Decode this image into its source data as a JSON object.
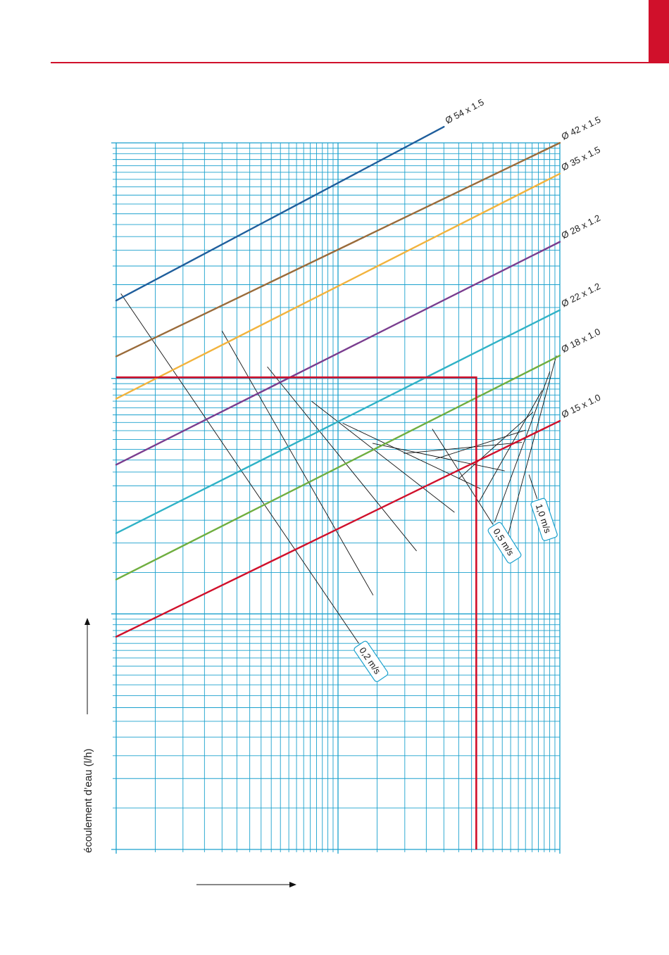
{
  "page": {
    "accent_color": "#d0102b"
  },
  "chart_data": {
    "type": "line",
    "x_scale": "log",
    "y_scale": "log",
    "grid": true,
    "grid_color": "#1ba1cd",
    "ylabel": "écoulement d’eau (l/h)",
    "xlabel": "",
    "xlim": [
      1,
      100
    ],
    "ylim": [
      10,
      10000
    ],
    "series": [
      {
        "name": "Ø 54 x 1.5",
        "color": "#1f5e9c",
        "x": [
          1,
          30
        ],
        "y": [
          2140,
          11700
        ]
      },
      {
        "name": "Ø 42 x 1.5",
        "color": "#9a6b3a",
        "x": [
          1,
          100
        ],
        "y": [
          1240,
          10000
        ]
      },
      {
        "name": "Ø 35 x 1.5",
        "color": "#f2b33d",
        "x": [
          1,
          100
        ],
        "y": [
          820,
          7400
        ]
      },
      {
        "name": "Ø 28 x 1.2",
        "color": "#7a3d8f",
        "x": [
          1,
          100
        ],
        "y": [
          430,
          3800
        ]
      },
      {
        "name": "Ø 22 x 1.2",
        "color": "#2fb2c6",
        "x": [
          1,
          100
        ],
        "y": [
          220,
          1950
        ]
      },
      {
        "name": "Ø 18 x 1.0",
        "color": "#6fae3f",
        "x": [
          1,
          100
        ],
        "y": [
          140,
          1250
        ]
      },
      {
        "name": "Ø 15 x 1.0",
        "color": "#d0102b",
        "x": [
          1,
          100
        ],
        "y": [
          80,
          660
        ]
      }
    ],
    "velocity_lines": [
      {
        "label": "0,2 m/s",
        "x": [
          1.05,
          12.4
        ],
        "y": [
          2290,
          75
        ]
      },
      {
        "label": "0,5 m/s",
        "x": [
          26.6,
          49.9
        ],
        "y": [
          610,
          240
        ]
      },
      {
        "label": "1,0 m/s",
        "x": [
          72.6,
          79
        ],
        "y": [
          390,
          308
        ]
      }
    ],
    "velocity_lines_unlabeled": [
      {
        "x": [
          3,
          14.4
        ],
        "y": [
          1590,
          120
        ]
      },
      {
        "x": [
          4.8,
          22.6
        ],
        "y": [
          1120,
          185
        ]
      },
      {
        "x": [
          7.6,
          33.5
        ],
        "y": [
          800,
          270
        ]
      },
      {
        "x": [
          10.5,
          43.9
        ],
        "y": [
          645,
          340
        ]
      },
      {
        "x": [
          14.3,
          56.4
        ],
        "y": [
          530,
          405
        ]
      },
      {
        "x": [
          19.8,
          67.5
        ],
        "y": [
          480,
          535
        ]
      },
      {
        "x": [
          27.5,
          70.1
        ],
        "y": [
          455,
          603
        ]
      },
      {
        "x": [
          35,
          75.8
        ],
        "y": [
          375,
          720
        ]
      },
      {
        "x": [
          43.3,
          83.2
        ],
        "y": [
          300,
          890
        ]
      },
      {
        "x": [
          50.8,
          90.2
        ],
        "y": [
          245,
          1070
        ]
      },
      {
        "x": [
          58.5,
          96.4
        ],
        "y": [
          218,
          1250
        ]
      }
    ],
    "example_reading": {
      "color": "#d0102b",
      "x": 42,
      "y": 1010
    }
  }
}
